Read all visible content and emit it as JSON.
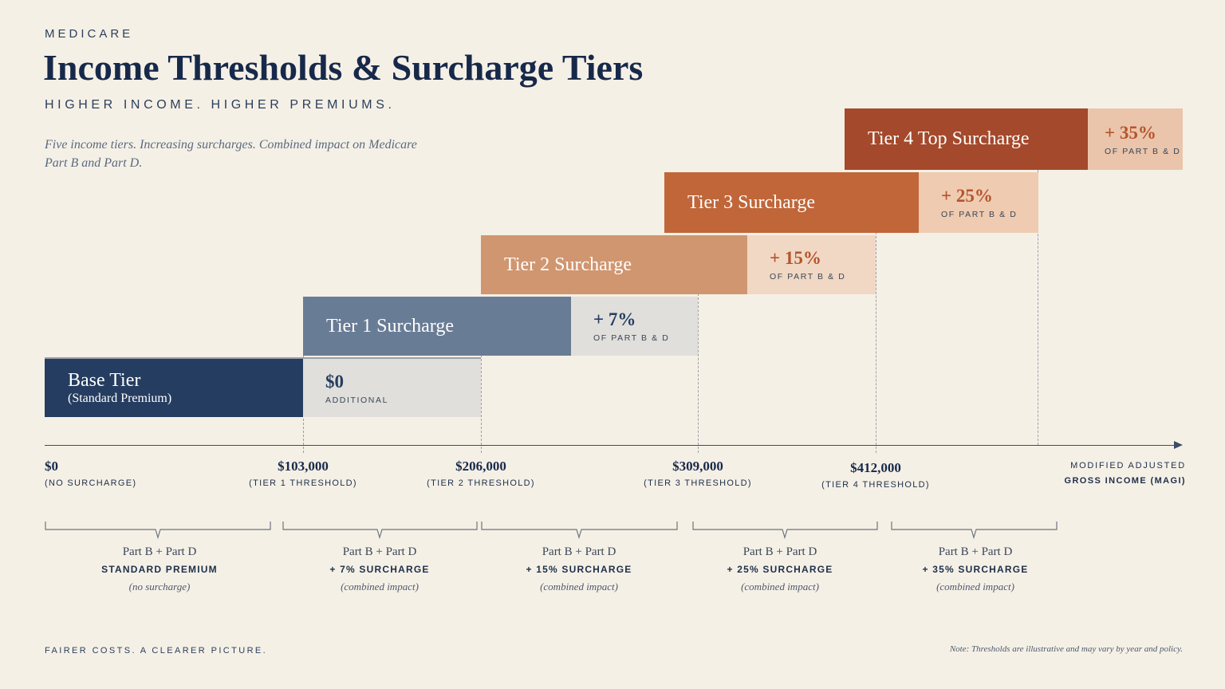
{
  "header": {
    "eyebrow": "MEDICARE",
    "title": "Income Thresholds & Surcharge Tiers",
    "subtitle": "HIGHER INCOME. HIGHER PREMIUMS.",
    "description": "Five income tiers. Increasing surcharges. Combined impact on Medicare Part B and Part D."
  },
  "tiers": [
    {
      "label": "Base Tier",
      "sublabel": "(Standard Premium)",
      "surcharge": "$0",
      "surcharge_note": "ADDITIONAL",
      "color": "#253d60",
      "surcharge_color": "#e0dfdb"
    },
    {
      "label": "Tier 1 Surcharge",
      "surcharge": "+ 7%",
      "surcharge_note": "OF PART B & D",
      "color": "#697c95",
      "surcharge_color": "#e0dfdb"
    },
    {
      "label": "Tier 2 Surcharge",
      "surcharge": "+ 15%",
      "surcharge_note": "OF PART B & D",
      "color": "#d09670",
      "surcharge_color": "#f1d8c4"
    },
    {
      "label": "Tier 3 Surcharge",
      "surcharge": "+ 25%",
      "surcharge_note": "OF PART B & D",
      "color": "#c06639",
      "surcharge_color": "#efcbb1"
    },
    {
      "label": "Tier 4 Top Surcharge",
      "surcharge": "+ 35%",
      "surcharge_note": "OF PART B & D",
      "color": "#a4492b",
      "surcharge_color": "#eac5ab"
    }
  ],
  "axis": {
    "label_line1": "MODIFIED ADJUSTED",
    "label_line2": "GROSS INCOME (MAGI)",
    "ticks": [
      {
        "value": "$0",
        "caption": "(NO SURCHARGE)"
      },
      {
        "value": "$103,000",
        "caption": "(TIER 1 THRESHOLD)"
      },
      {
        "value": "$206,000",
        "caption": "(TIER 2 THRESHOLD)"
      },
      {
        "value": "$309,000",
        "caption": "(TIER 3 THRESHOLD)"
      },
      {
        "value": "$412,000",
        "caption": "(TIER 4 THRESHOLD)"
      }
    ]
  },
  "groups": [
    {
      "line1": "Part B + Part D",
      "line2": "STANDARD PREMIUM",
      "line3": "(no surcharge)"
    },
    {
      "line1": "Part B + Part D",
      "line2": "+ 7% SURCHARGE",
      "line3": "(combined impact)"
    },
    {
      "line1": "Part B + Part D",
      "line2": "+ 15% SURCHARGE",
      "line3": "(combined impact)"
    },
    {
      "line1": "Part B + Part D",
      "line2": "+ 25% SURCHARGE",
      "line3": "(combined impact)"
    },
    {
      "line1": "Part B + Part D",
      "line2": "+ 35% SURCHARGE",
      "line3": "(combined impact)"
    }
  ],
  "footer": {
    "tagline": "FAIRER COSTS. A CLEARER PICTURE.",
    "note": "Note: Thresholds are illustrative and may vary by year and policy."
  },
  "colors": {
    "background": "#f5f0e6",
    "navy": "#17294a",
    "surcharge_text_orange": "#b4542c",
    "surcharge_text_navy": "#253d60"
  }
}
